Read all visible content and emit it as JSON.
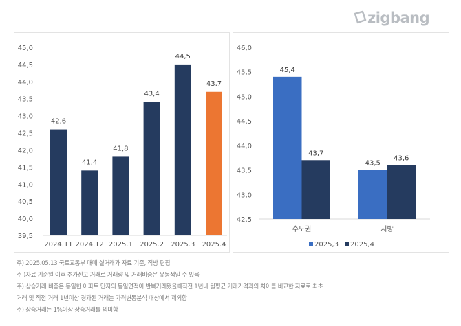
{
  "brand": "zigbang",
  "chart_data": [
    {
      "type": "bar",
      "categories": [
        "2024.11",
        "2024.12",
        "2025.1",
        "2025.2",
        "2025.3",
        "2025.4"
      ],
      "values": [
        42.6,
        41.4,
        41.8,
        43.4,
        44.5,
        43.7
      ],
      "data_labels": [
        "42,6",
        "41,4",
        "41,8",
        "43,4",
        "44,5",
        "43,7"
      ],
      "ylim": [
        39.5,
        45.0
      ],
      "yticks": [
        "45,0",
        "44,5",
        "44,0",
        "43,5",
        "43,0",
        "42,5",
        "42,0",
        "41,5",
        "41,0",
        "40,5",
        "40,0",
        "39,5"
      ],
      "colors": {
        "default": "#253b5f",
        "highlight": "#ec7632"
      },
      "highlight_index": 5,
      "grid": false
    },
    {
      "type": "bar",
      "categories": [
        "수도권",
        "지방"
      ],
      "series": [
        {
          "name": "2025.3",
          "legend": "2025,3",
          "values": [
            45.4,
            43.5
          ],
          "data_labels": [
            "45,4",
            "43,5"
          ],
          "color": "#3a6ec2"
        },
        {
          "name": "2025.4",
          "legend": "2025,4",
          "values": [
            43.7,
            43.6
          ],
          "data_labels": [
            "43,7",
            "43,6"
          ],
          "color": "#253b5f"
        }
      ],
      "ylim": [
        42.5,
        46.0
      ],
      "yticks": [
        "46,0",
        "45,5",
        "45,0",
        "44,5",
        "44,0",
        "43,5",
        "43,0",
        "42,5"
      ],
      "legend_placement": "bottom",
      "grid": false
    }
  ],
  "notes": [
    "주) 2025.05.13 국토교통부 매매 실거래가 자료 기준, 직방 편집",
    "주 )자료 기준일 이후 추가신고 거래로 거래량 및 거래비중은 유동적일 수 있음",
    "주) 상승거래 비중은 동일한 아파트 단지의 동일면적이 반복거래됐을때직전 1년내 월평균 거래가격과의 차이를 비교한 자료로 최초",
    "거래 및 직전 거래 1년이상 경과된 거래는 가격변동분석 대상에서 제외함",
    "주) 상승거래는 1%이상 상승거래를 의미함"
  ]
}
